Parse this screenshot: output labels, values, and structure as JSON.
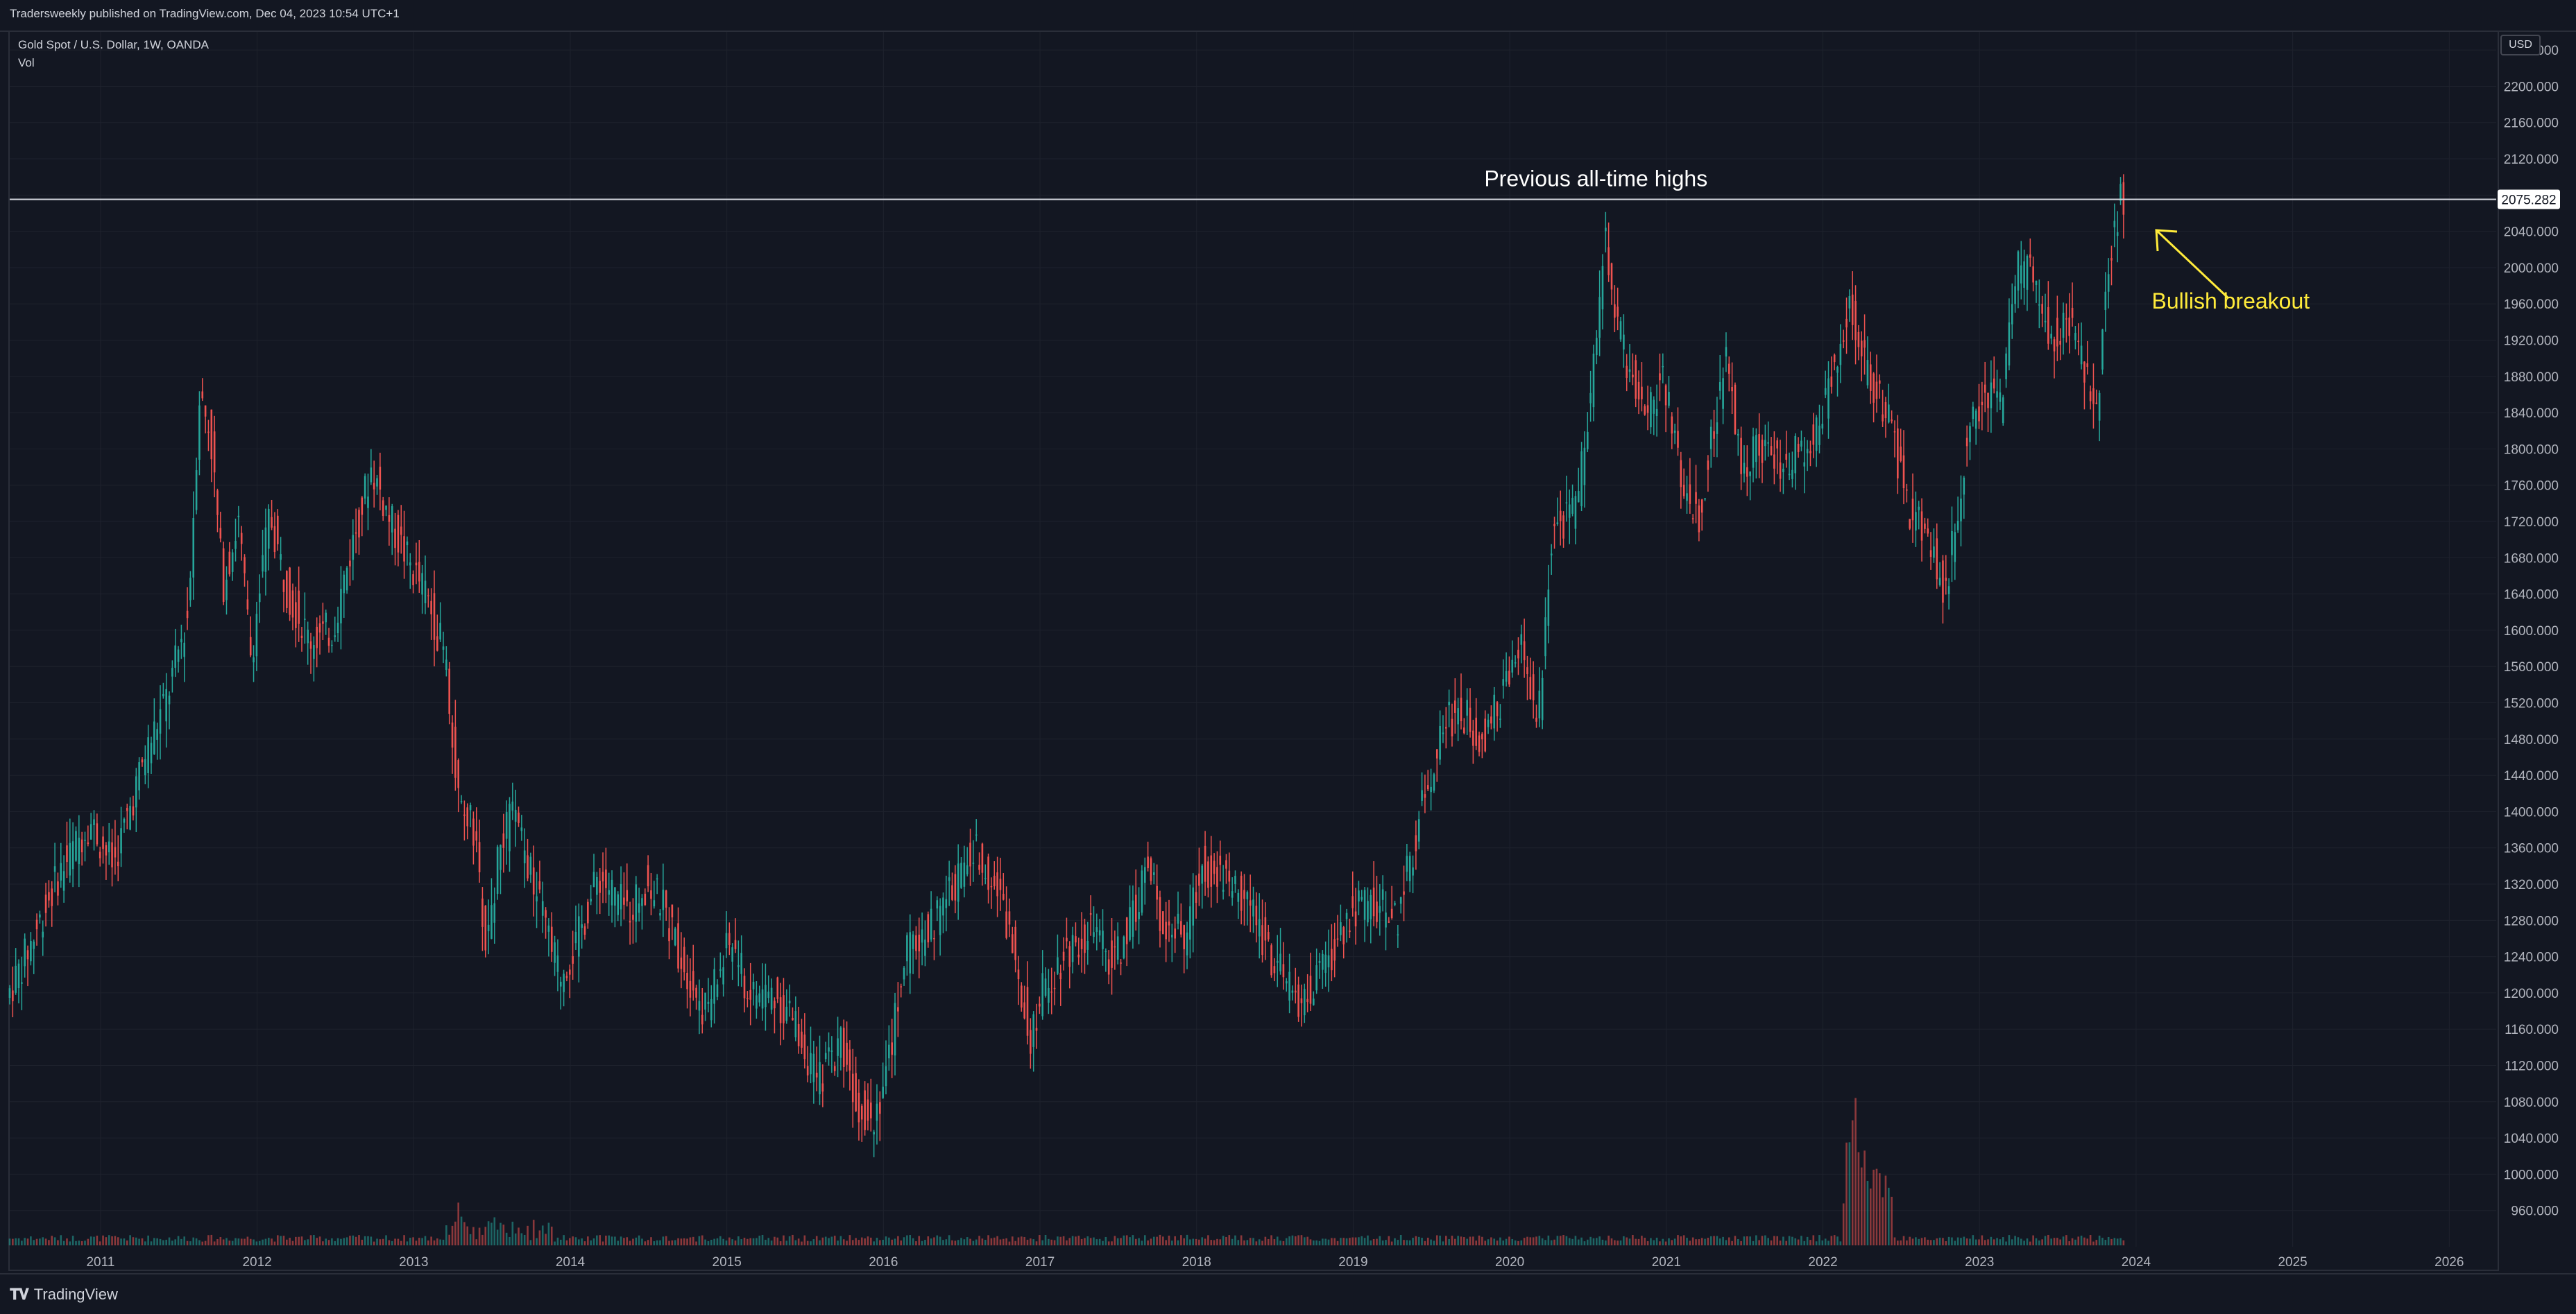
{
  "header": {
    "published": "Tradersweekly published on TradingView.com, Dec 04, 2023 10:54 UTC+1"
  },
  "legend": {
    "symbol": "Gold Spot / U.S. Dollar, 1W, OANDA",
    "volume": "Vol"
  },
  "currency": "USD",
  "footer": {
    "brand": "TradingView"
  },
  "colors": {
    "up": "#26a69a",
    "down": "#ef5350",
    "background": "#131722",
    "grid": "#1e222d",
    "annotation": "#ffeb3b",
    "line": "#d1d4dc"
  },
  "chart_data": {
    "type": "candlestick",
    "title": "Gold Spot / U.S. Dollar, 1W, OANDA",
    "ylim": [
      920,
      2260
    ],
    "y_ticks": [
      960,
      1000,
      1040,
      1080,
      1120,
      1160,
      1200,
      1240,
      1280,
      1320,
      1360,
      1400,
      1440,
      1480,
      1520,
      1560,
      1600,
      1640,
      1680,
      1720,
      1760,
      1800,
      1840,
      1880,
      1920,
      1960,
      2000,
      2040,
      2080,
      2120,
      2160,
      2200,
      2240
    ],
    "y_tick_labels": [
      "960.000",
      "1000.000",
      "1040.000",
      "1080.000",
      "1120.000",
      "1160.000",
      "1200.000",
      "1240.000",
      "1280.000",
      "1320.000",
      "1360.000",
      "1400.000",
      "1440.000",
      "1480.000",
      "1520.000",
      "1560.000",
      "1600.000",
      "1640.000",
      "1680.000",
      "1720.000",
      "1760.000",
      "1800.000",
      "1840.000",
      "1880.000",
      "1920.000",
      "1960.000",
      "2000.000",
      "2040.000",
      "2080.000",
      "2120.000",
      "2160.000",
      "2200.000",
      "2240.000"
    ],
    "x_labels": [
      "2011",
      "2012",
      "2013",
      "2014",
      "2015",
      "2016",
      "2017",
      "2018",
      "2019",
      "2020",
      "2021",
      "2022",
      "2023",
      "2024",
      "2025",
      "2026"
    ],
    "x_range": [
      2010.42,
      2026.3
    ],
    "price_path": [
      [
        2010.42,
        1195
      ],
      [
        2010.55,
        1245
      ],
      [
        2010.75,
        1330
      ],
      [
        2010.95,
        1390
      ],
      [
        2011.1,
        1340
      ],
      [
        2011.3,
        1460
      ],
      [
        2011.45,
        1530
      ],
      [
        2011.58,
        1620
      ],
      [
        2011.65,
        1860
      ],
      [
        2011.72,
        1820
      ],
      [
        2011.8,
        1650
      ],
      [
        2011.9,
        1720
      ],
      [
        2011.98,
        1570
      ],
      [
        2012.1,
        1730
      ],
      [
        2012.2,
        1650
      ],
      [
        2012.35,
        1590
      ],
      [
        2012.5,
        1600
      ],
      [
        2012.62,
        1690
      ],
      [
        2012.75,
        1780
      ],
      [
        2012.87,
        1720
      ],
      [
        2013.0,
        1670
      ],
      [
        2013.1,
        1640
      ],
      [
        2013.22,
        1570
      ],
      [
        2013.3,
        1420
      ],
      [
        2013.4,
        1380
      ],
      [
        2013.48,
        1250
      ],
      [
        2013.55,
        1340
      ],
      [
        2013.65,
        1400
      ],
      [
        2013.8,
        1310
      ],
      [
        2013.95,
        1220
      ],
      [
        2014.05,
        1250
      ],
      [
        2014.2,
        1330
      ],
      [
        2014.38,
        1290
      ],
      [
        2014.5,
        1320
      ],
      [
        2014.6,
        1300
      ],
      [
        2014.75,
        1230
      ],
      [
        2014.88,
        1180
      ],
      [
        2015.05,
        1260
      ],
      [
        2015.15,
        1200
      ],
      [
        2015.3,
        1200
      ],
      [
        2015.45,
        1170
      ],
      [
        2015.6,
        1100
      ],
      [
        2015.75,
        1150
      ],
      [
        2015.85,
        1080
      ],
      [
        2015.95,
        1060
      ],
      [
        2016.05,
        1120
      ],
      [
        2016.15,
        1240
      ],
      [
        2016.35,
        1280
      ],
      [
        2016.5,
        1330
      ],
      [
        2016.62,
        1360
      ],
      [
        2016.75,
        1310
      ],
      [
        2016.88,
        1230
      ],
      [
        2016.95,
        1150
      ],
      [
        2017.05,
        1210
      ],
      [
        2017.2,
        1250
      ],
      [
        2017.35,
        1270
      ],
      [
        2017.48,
        1230
      ],
      [
        2017.6,
        1280
      ],
      [
        2017.7,
        1340
      ],
      [
        2017.8,
        1280
      ],
      [
        2017.95,
        1260
      ],
      [
        2018.05,
        1340
      ],
      [
        2018.2,
        1330
      ],
      [
        2018.35,
        1300
      ],
      [
        2018.5,
        1240
      ],
      [
        2018.62,
        1200
      ],
      [
        2018.7,
        1190
      ],
      [
        2018.85,
        1230
      ],
      [
        2019.0,
        1290
      ],
      [
        2019.15,
        1300
      ],
      [
        2019.3,
        1280
      ],
      [
        2019.45,
        1400
      ],
      [
        2019.6,
        1500
      ],
      [
        2019.7,
        1510
      ],
      [
        2019.85,
        1480
      ],
      [
        2019.95,
        1520
      ],
      [
        2020.1,
        1580
      ],
      [
        2020.2,
        1490
      ],
      [
        2020.28,
        1700
      ],
      [
        2020.45,
        1740
      ],
      [
        2020.58,
        1930
      ],
      [
        2020.62,
        2040
      ],
      [
        2020.7,
        1940
      ],
      [
        2020.8,
        1880
      ],
      [
        2020.9,
        1840
      ],
      [
        2021.0,
        1880
      ],
      [
        2021.1,
        1780
      ],
      [
        2021.22,
        1720
      ],
      [
        2021.4,
        1900
      ],
      [
        2021.5,
        1780
      ],
      [
        2021.6,
        1810
      ],
      [
        2021.75,
        1780
      ],
      [
        2021.9,
        1800
      ],
      [
        2022.0,
        1830
      ],
      [
        2022.1,
        1900
      ],
      [
        2022.18,
        1960
      ],
      [
        2022.3,
        1880
      ],
      [
        2022.45,
        1830
      ],
      [
        2022.55,
        1740
      ],
      [
        2022.7,
        1700
      ],
      [
        2022.8,
        1640
      ],
      [
        2022.92,
        1790
      ],
      [
        2023.05,
        1870
      ],
      [
        2023.15,
        1840
      ],
      [
        2023.25,
        2000
      ],
      [
        2023.35,
        1990
      ],
      [
        2023.48,
        1920
      ],
      [
        2023.6,
        1940
      ],
      [
        2023.7,
        1880
      ],
      [
        2023.77,
        1840
      ],
      [
        2023.82,
        1980
      ],
      [
        2023.88,
        2040
      ],
      [
        2023.92,
        2075
      ]
    ],
    "volume_range": [
      0,
      400
    ],
    "volume_spikes": [
      [
        2013.3,
        90
      ],
      [
        2013.55,
        60
      ],
      [
        2022.2,
        380
      ],
      [
        2022.25,
        180
      ],
      [
        2022.35,
        120
      ]
    ],
    "horizontal_line": {
      "value": 2075.282,
      "label": "2075.282"
    },
    "annotations": [
      {
        "text": "Previous all-time highs",
        "x": 2020.55,
        "y": 2090
      },
      {
        "text": "Bullish breakout",
        "x": 2024.1,
        "y": 1955
      }
    ]
  }
}
